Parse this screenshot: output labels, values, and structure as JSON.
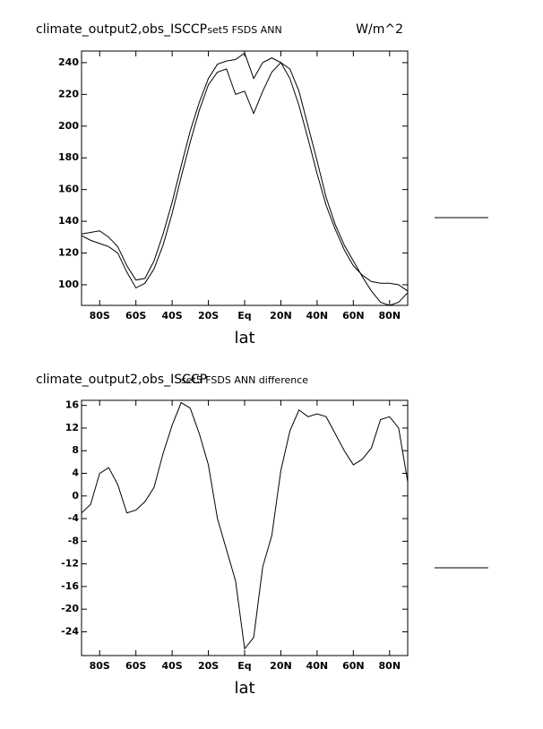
{
  "chart_data": [
    {
      "type": "line",
      "title": "climate_output2,obs_ISCCP",
      "subtitle": "set5 FSDS ANN",
      "units": "W/m^2",
      "xlabel": "lat",
      "x": [
        -90,
        -85,
        -80,
        -75,
        -70,
        -65,
        -60,
        -55,
        -50,
        -45,
        -40,
        -35,
        -30,
        -25,
        -20,
        -15,
        -10,
        -5,
        0,
        5,
        10,
        15,
        20,
        25,
        30,
        35,
        40,
        45,
        50,
        55,
        60,
        65,
        70,
        75,
        80,
        85,
        90
      ],
      "xlim": [
        -90,
        90
      ],
      "xticks": [
        {
          "value": -80,
          "label": "80S"
        },
        {
          "value": -60,
          "label": "60S"
        },
        {
          "value": -40,
          "label": "40S"
        },
        {
          "value": -20,
          "label": "20S"
        },
        {
          "value": 0,
          "label": "Eq"
        },
        {
          "value": 20,
          "label": "20N"
        },
        {
          "value": 40,
          "label": "40N"
        },
        {
          "value": 60,
          "label": "60N"
        },
        {
          "value": 80,
          "label": "80N"
        }
      ],
      "ylim": [
        87,
        247.3
      ],
      "yticks": [
        100,
        120,
        140,
        160,
        180,
        200,
        220,
        240
      ],
      "grid": false,
      "series": [
        {
          "color": "#000000",
          "values": [
            132,
            133,
            134,
            130,
            124,
            112,
            103,
            104,
            115,
            132,
            152,
            175,
            197,
            215,
            230,
            239,
            241,
            242,
            246,
            230,
            240,
            243,
            240,
            230,
            213,
            192,
            170,
            150,
            135,
            122,
            112,
            106,
            102,
            101,
            101,
            100,
            96
          ]
        },
        {
          "color": "#000000",
          "values": [
            131,
            128,
            126,
            124,
            120,
            108,
            98,
            101,
            110,
            125,
            145,
            168,
            190,
            210,
            226,
            234,
            236,
            220,
            222,
            208,
            222,
            234,
            240,
            236,
            222,
            200,
            178,
            155,
            138,
            125,
            115,
            105,
            96,
            89,
            87,
            89,
            95
          ]
        }
      ]
    },
    {
      "type": "line",
      "title": "climate_output2,obs_ISCCP",
      "subtitle": "set5 FSDS ANN difference",
      "xlabel": "lat",
      "x": [
        -90,
        -85,
        -80,
        -75,
        -70,
        -65,
        -60,
        -55,
        -50,
        -45,
        -40,
        -35,
        -30,
        -25,
        -20,
        -15,
        -10,
        -5,
        0,
        5,
        10,
        15,
        20,
        25,
        30,
        35,
        40,
        45,
        50,
        55,
        60,
        65,
        70,
        75,
        80,
        85,
        90
      ],
      "xlim": [
        -90,
        90
      ],
      "xticks": [
        {
          "value": -80,
          "label": "80S"
        },
        {
          "value": -60,
          "label": "60S"
        },
        {
          "value": -40,
          "label": "40S"
        },
        {
          "value": -20,
          "label": "20S"
        },
        {
          "value": 0,
          "label": "Eq"
        },
        {
          "value": 20,
          "label": "20N"
        },
        {
          "value": 40,
          "label": "40N"
        },
        {
          "value": 60,
          "label": "60N"
        },
        {
          "value": 80,
          "label": "80N"
        }
      ],
      "ylim": [
        -28.2,
        16.9
      ],
      "yticks": [
        16,
        12,
        8,
        4,
        0,
        -4,
        -8,
        -12,
        -16,
        -20,
        -24
      ],
      "grid": false,
      "series": [
        {
          "color": "#000000",
          "values": [
            -3,
            -1.5,
            4,
            5,
            2,
            -3,
            -2.5,
            -1,
            1.5,
            7.5,
            12.5,
            16.5,
            15.5,
            11,
            5.5,
            -4,
            -9.5,
            -15,
            -27,
            -25,
            -12.5,
            -7,
            4.5,
            11.5,
            15.2,
            14,
            14.5,
            14,
            11,
            8,
            5.5,
            6.5,
            8.5,
            13.5,
            14,
            12,
            2.5
          ]
        }
      ]
    }
  ]
}
